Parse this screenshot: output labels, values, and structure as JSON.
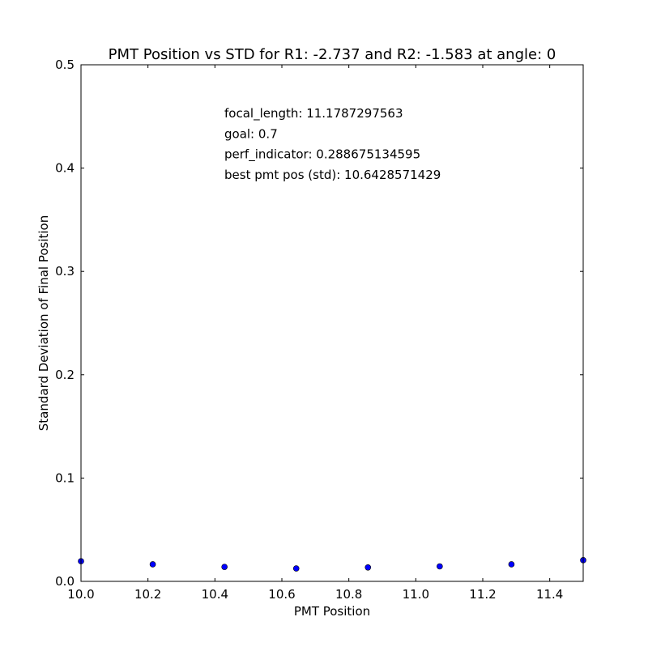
{
  "chart_data": {
    "type": "scatter",
    "title": "PMT Position vs STD for R1: -2.737 and R2: -1.583 at angle: 0",
    "xlabel": "PMT Position",
    "ylabel": "Standard Deviation of Final Position",
    "xlim": [
      10.0,
      11.5
    ],
    "ylim": [
      0.0,
      0.5
    ],
    "xticks": [
      "10.0",
      "10.2",
      "10.4",
      "10.6",
      "10.8",
      "11.0",
      "11.2",
      "11.4"
    ],
    "yticks": [
      "0.0",
      "0.1",
      "0.2",
      "0.3",
      "0.4",
      "0.5"
    ],
    "grid": false,
    "marker_color": "#0000ff",
    "x": [
      10.0,
      10.2143,
      10.4286,
      10.6429,
      10.8571,
      11.0714,
      11.2857,
      11.5
    ],
    "y": [
      0.0195,
      0.0165,
      0.014,
      0.0125,
      0.0135,
      0.0145,
      0.0165,
      0.0205
    ],
    "annotations": [
      "focal_length: 11.1787297563",
      "goal: 0.7",
      "perf_indicator: 0.288675134595",
      "best pmt pos (std): 10.6428571429"
    ]
  }
}
